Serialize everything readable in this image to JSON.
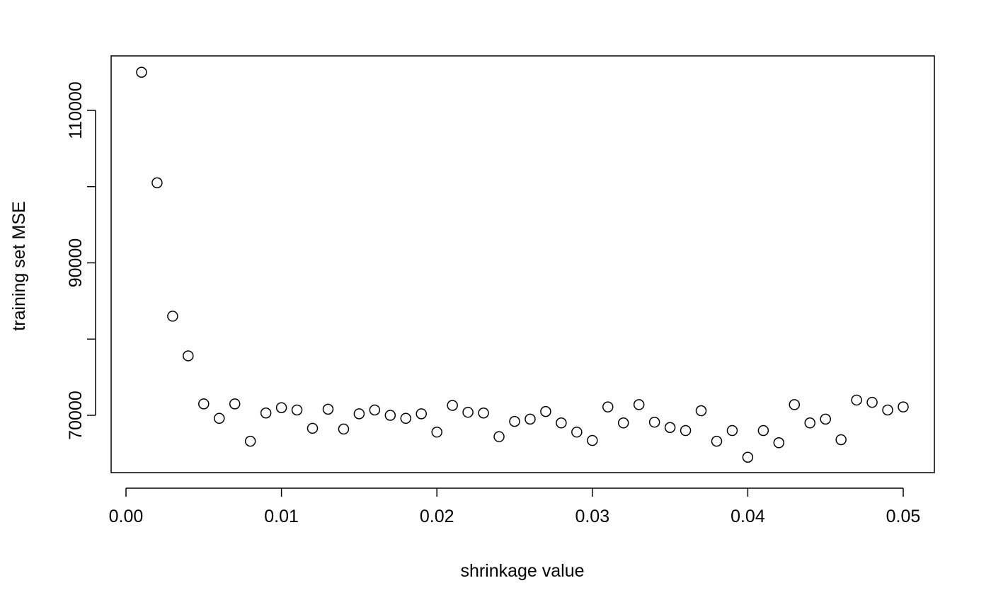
{
  "chart_data": {
    "type": "scatter",
    "title": "",
    "xlabel": "shrinkage value",
    "ylabel": "training set MSE",
    "xlim": [
      -0.001,
      0.052
    ],
    "ylim": [
      55000,
      120000
    ],
    "x_ticks": [
      0.0,
      0.01,
      0.02,
      0.03,
      0.04,
      0.05
    ],
    "x_tick_labels": [
      "0.00",
      "0.01",
      "0.02",
      "0.03",
      "0.04",
      "0.05"
    ],
    "y_ticks": [
      70000,
      80000,
      90000,
      100000,
      110000
    ],
    "y_tick_labels": [
      "70000",
      "",
      "90000",
      "",
      "110000"
    ],
    "grid": false,
    "legend": "none",
    "x": [
      0.001,
      0.002,
      0.003,
      0.004,
      0.005,
      0.006,
      0.007,
      0.008,
      0.009,
      0.01,
      0.011,
      0.012,
      0.013,
      0.014,
      0.015,
      0.016,
      0.017,
      0.018,
      0.019,
      0.02,
      0.021,
      0.022,
      0.023,
      0.024,
      0.025,
      0.026,
      0.027,
      0.028,
      0.029,
      0.03,
      0.031,
      0.032,
      0.033,
      0.034,
      0.035,
      0.036,
      0.037,
      0.038,
      0.039,
      0.04,
      0.041,
      0.042,
      0.043,
      0.044,
      0.045,
      0.046,
      0.047,
      0.048,
      0.049,
      0.05
    ],
    "y": [
      115000,
      100500,
      83000,
      77800,
      71500,
      69600,
      71500,
      66600,
      70300,
      71000,
      70700,
      68300,
      70800,
      68200,
      70200,
      70700,
      70000,
      69600,
      70200,
      67800,
      71300,
      70400,
      70300,
      67200,
      69200,
      69500,
      70500,
      69000,
      67800,
      66700,
      71100,
      69000,
      71400,
      69100,
      68400,
      68000,
      70600,
      66600,
      68000,
      64500,
      68000,
      66400,
      71400,
      69000,
      69500,
      66800,
      72000,
      71700,
      70700,
      71100
    ]
  }
}
